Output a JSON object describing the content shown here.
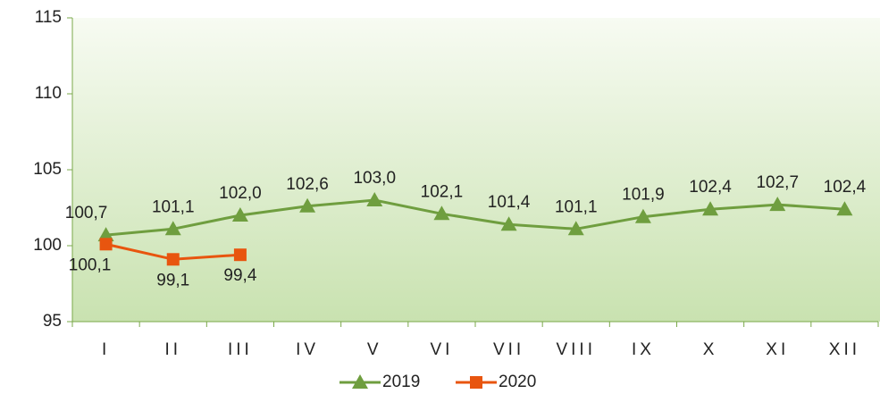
{
  "chart_data": {
    "type": "line",
    "categories": [
      "I",
      "II",
      "III",
      "IV",
      "V",
      "VI",
      "VII",
      "VIII",
      "IX",
      "X",
      "XI",
      "XII"
    ],
    "series": [
      {
        "name": "2019",
        "color": "#6f9e3f",
        "marker": "triangle",
        "values": [
          100.7,
          101.1,
          102.0,
          102.6,
          103.0,
          102.1,
          101.4,
          101.1,
          101.9,
          102.4,
          102.7,
          102.4
        ],
        "value_labels": [
          "100,7",
          "101,1",
          "102,0",
          "102,6",
          "103,0",
          "102,1",
          "101,4",
          "101,1",
          "101,9",
          "102,4",
          "102,7",
          "102,4"
        ]
      },
      {
        "name": "2020",
        "color": "#e8550f",
        "marker": "square",
        "values": [
          100.1,
          99.1,
          99.4,
          null,
          null,
          null,
          null,
          null,
          null,
          null,
          null,
          null
        ],
        "value_labels": [
          "100,1",
          "99,1",
          "99,4",
          null,
          null,
          null,
          null,
          null,
          null,
          null,
          null,
          null
        ]
      }
    ],
    "ylim": [
      95,
      115
    ],
    "yticks": [
      95,
      100,
      105,
      110,
      115
    ],
    "legend": "bottom"
  }
}
